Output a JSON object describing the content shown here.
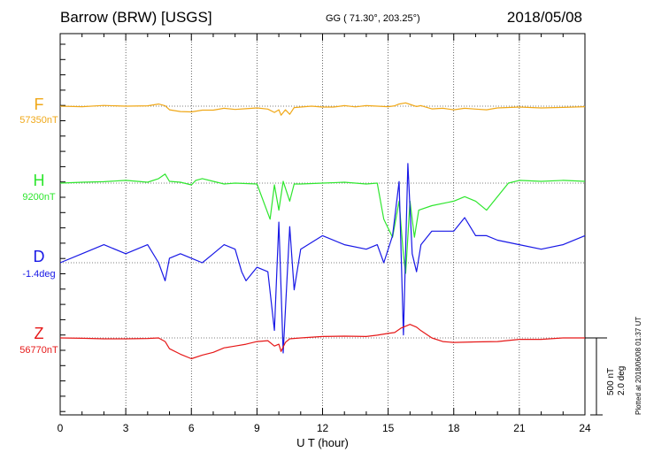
{
  "header": {
    "title": "Barrow (BRW)  [USGS]",
    "coords": "GG ( 71.30°, 203.25°)",
    "date": "2018/05/08"
  },
  "side_note": "Plotted at 2018/06/08 01:37 UT",
  "scale_note": [
    "500 nT",
    "2.0 deg"
  ],
  "chart_data": {
    "type": "line",
    "xlabel": "U T (hour)",
    "xlim": [
      0,
      24
    ],
    "xticks": [
      "0",
      "3",
      "6",
      "9",
      "12",
      "15",
      "18",
      "21",
      "24"
    ],
    "grid": true,
    "series": [
      {
        "name": "F",
        "baseline": "57350nT",
        "color": "#f0a818",
        "x": [
          0,
          1,
          2,
          3,
          4,
          4.5,
          4.8,
          5.0,
          5.5,
          6,
          6.5,
          7,
          7.5,
          8,
          8.5,
          9,
          9.5,
          9.8,
          10.0,
          10.1,
          10.3,
          10.5,
          10.7,
          11,
          11.5,
          12,
          12.5,
          13,
          13.5,
          14,
          14.5,
          15,
          15.3,
          15.5,
          15.8,
          16,
          16.3,
          16.5,
          17,
          17.5,
          18,
          18.5,
          19,
          19.5,
          20,
          21,
          22,
          23,
          24
        ],
        "values": [
          0,
          -3,
          4,
          0,
          2,
          12,
          2,
          -20,
          -30,
          -32,
          -22,
          -22,
          -12,
          -18,
          -14,
          -10,
          -16,
          -35,
          -20,
          -50,
          -20,
          -45,
          -8,
          -5,
          0,
          -5,
          -5,
          3,
          -4,
          3,
          0,
          -3,
          2,
          12,
          18,
          10,
          -2,
          3,
          -15,
          -12,
          -20,
          -12,
          -16,
          -20,
          -10,
          -5,
          -10,
          -7,
          -3
        ]
      },
      {
        "name": "H",
        "baseline": "9200nT",
        "color": "#2ee62e",
        "x": [
          0,
          1,
          2,
          3,
          4,
          4.5,
          4.8,
          5.0,
          5.5,
          6,
          6.2,
          6.5,
          7,
          7.5,
          8,
          9,
          9.6,
          9.8,
          10,
          10.2,
          10.5,
          10.7,
          11,
          12,
          13,
          14,
          14.5,
          14.8,
          15.2,
          15.5,
          15.7,
          15.8,
          16.0,
          16.2,
          16.4,
          17,
          18,
          18.5,
          19,
          19.5,
          20,
          20.5,
          21,
          22,
          23,
          24
        ],
        "values": [
          0,
          5,
          8,
          15,
          5,
          25,
          50,
          10,
          5,
          -10,
          15,
          25,
          10,
          -5,
          0,
          -5,
          -200,
          -10,
          -150,
          10,
          -100,
          -5,
          -5,
          0,
          5,
          -5,
          0,
          -200,
          -300,
          -100,
          -400,
          -500,
          -100,
          -300,
          -150,
          -125,
          -100,
          -75,
          -100,
          -150,
          -75,
          0,
          15,
          10,
          15,
          10
        ]
      },
      {
        "name": "D",
        "baseline": "-1.4deg",
        "color": "#1818e6",
        "x": [
          0,
          1,
          2,
          3,
          4,
          4.5,
          4.8,
          5.0,
          5.5,
          6,
          6.5,
          7,
          7.5,
          8,
          8.3,
          8.5,
          9,
          9.5,
          9.8,
          10,
          10.2,
          10.5,
          10.7,
          11,
          12,
          13,
          14,
          14.5,
          14.8,
          15.2,
          15.5,
          15.7,
          15.9,
          16.1,
          16.3,
          16.5,
          17,
          18,
          18.5,
          19,
          19.5,
          20,
          21,
          22,
          23,
          24
        ],
        "values": [
          0.0,
          0.2,
          0.4,
          0.2,
          0.4,
          0.0,
          -0.4,
          0.1,
          0.2,
          0.1,
          0.0,
          0.2,
          0.4,
          0.3,
          -0.2,
          -0.4,
          -0.1,
          -0.2,
          -1.5,
          0.9,
          -2.0,
          0.8,
          -0.6,
          0.3,
          0.6,
          0.4,
          0.3,
          0.4,
          0.0,
          0.6,
          1.8,
          -1.6,
          2.2,
          0.2,
          -0.2,
          0.4,
          0.7,
          0.7,
          1.0,
          0.6,
          0.6,
          0.5,
          0.4,
          0.3,
          0.4,
          0.6
        ]
      },
      {
        "name": "Z",
        "baseline": "56770nT",
        "color": "#e61818",
        "x": [
          0,
          1,
          2,
          3,
          4,
          4.5,
          4.8,
          5.0,
          5.5,
          6,
          6.5,
          7,
          7.5,
          8,
          8.5,
          9,
          9.5,
          9.8,
          10,
          10.1,
          10.3,
          10.5,
          11,
          12,
          13,
          14,
          14.5,
          15,
          15.3,
          15.6,
          16,
          16.3,
          16.5,
          17,
          17.5,
          18,
          19,
          20,
          21,
          22,
          23,
          24
        ],
        "values": [
          0,
          -2,
          -5,
          -5,
          -3,
          0,
          -20,
          -60,
          -90,
          -115,
          -95,
          -80,
          -55,
          -45,
          -35,
          -20,
          -15,
          -45,
          -35,
          -75,
          -25,
          -5,
          0,
          8,
          10,
          8,
          15,
          25,
          30,
          55,
          75,
          60,
          40,
          0,
          -20,
          -25,
          -22,
          -20,
          -8,
          -8,
          0,
          0
        ]
      }
    ]
  }
}
